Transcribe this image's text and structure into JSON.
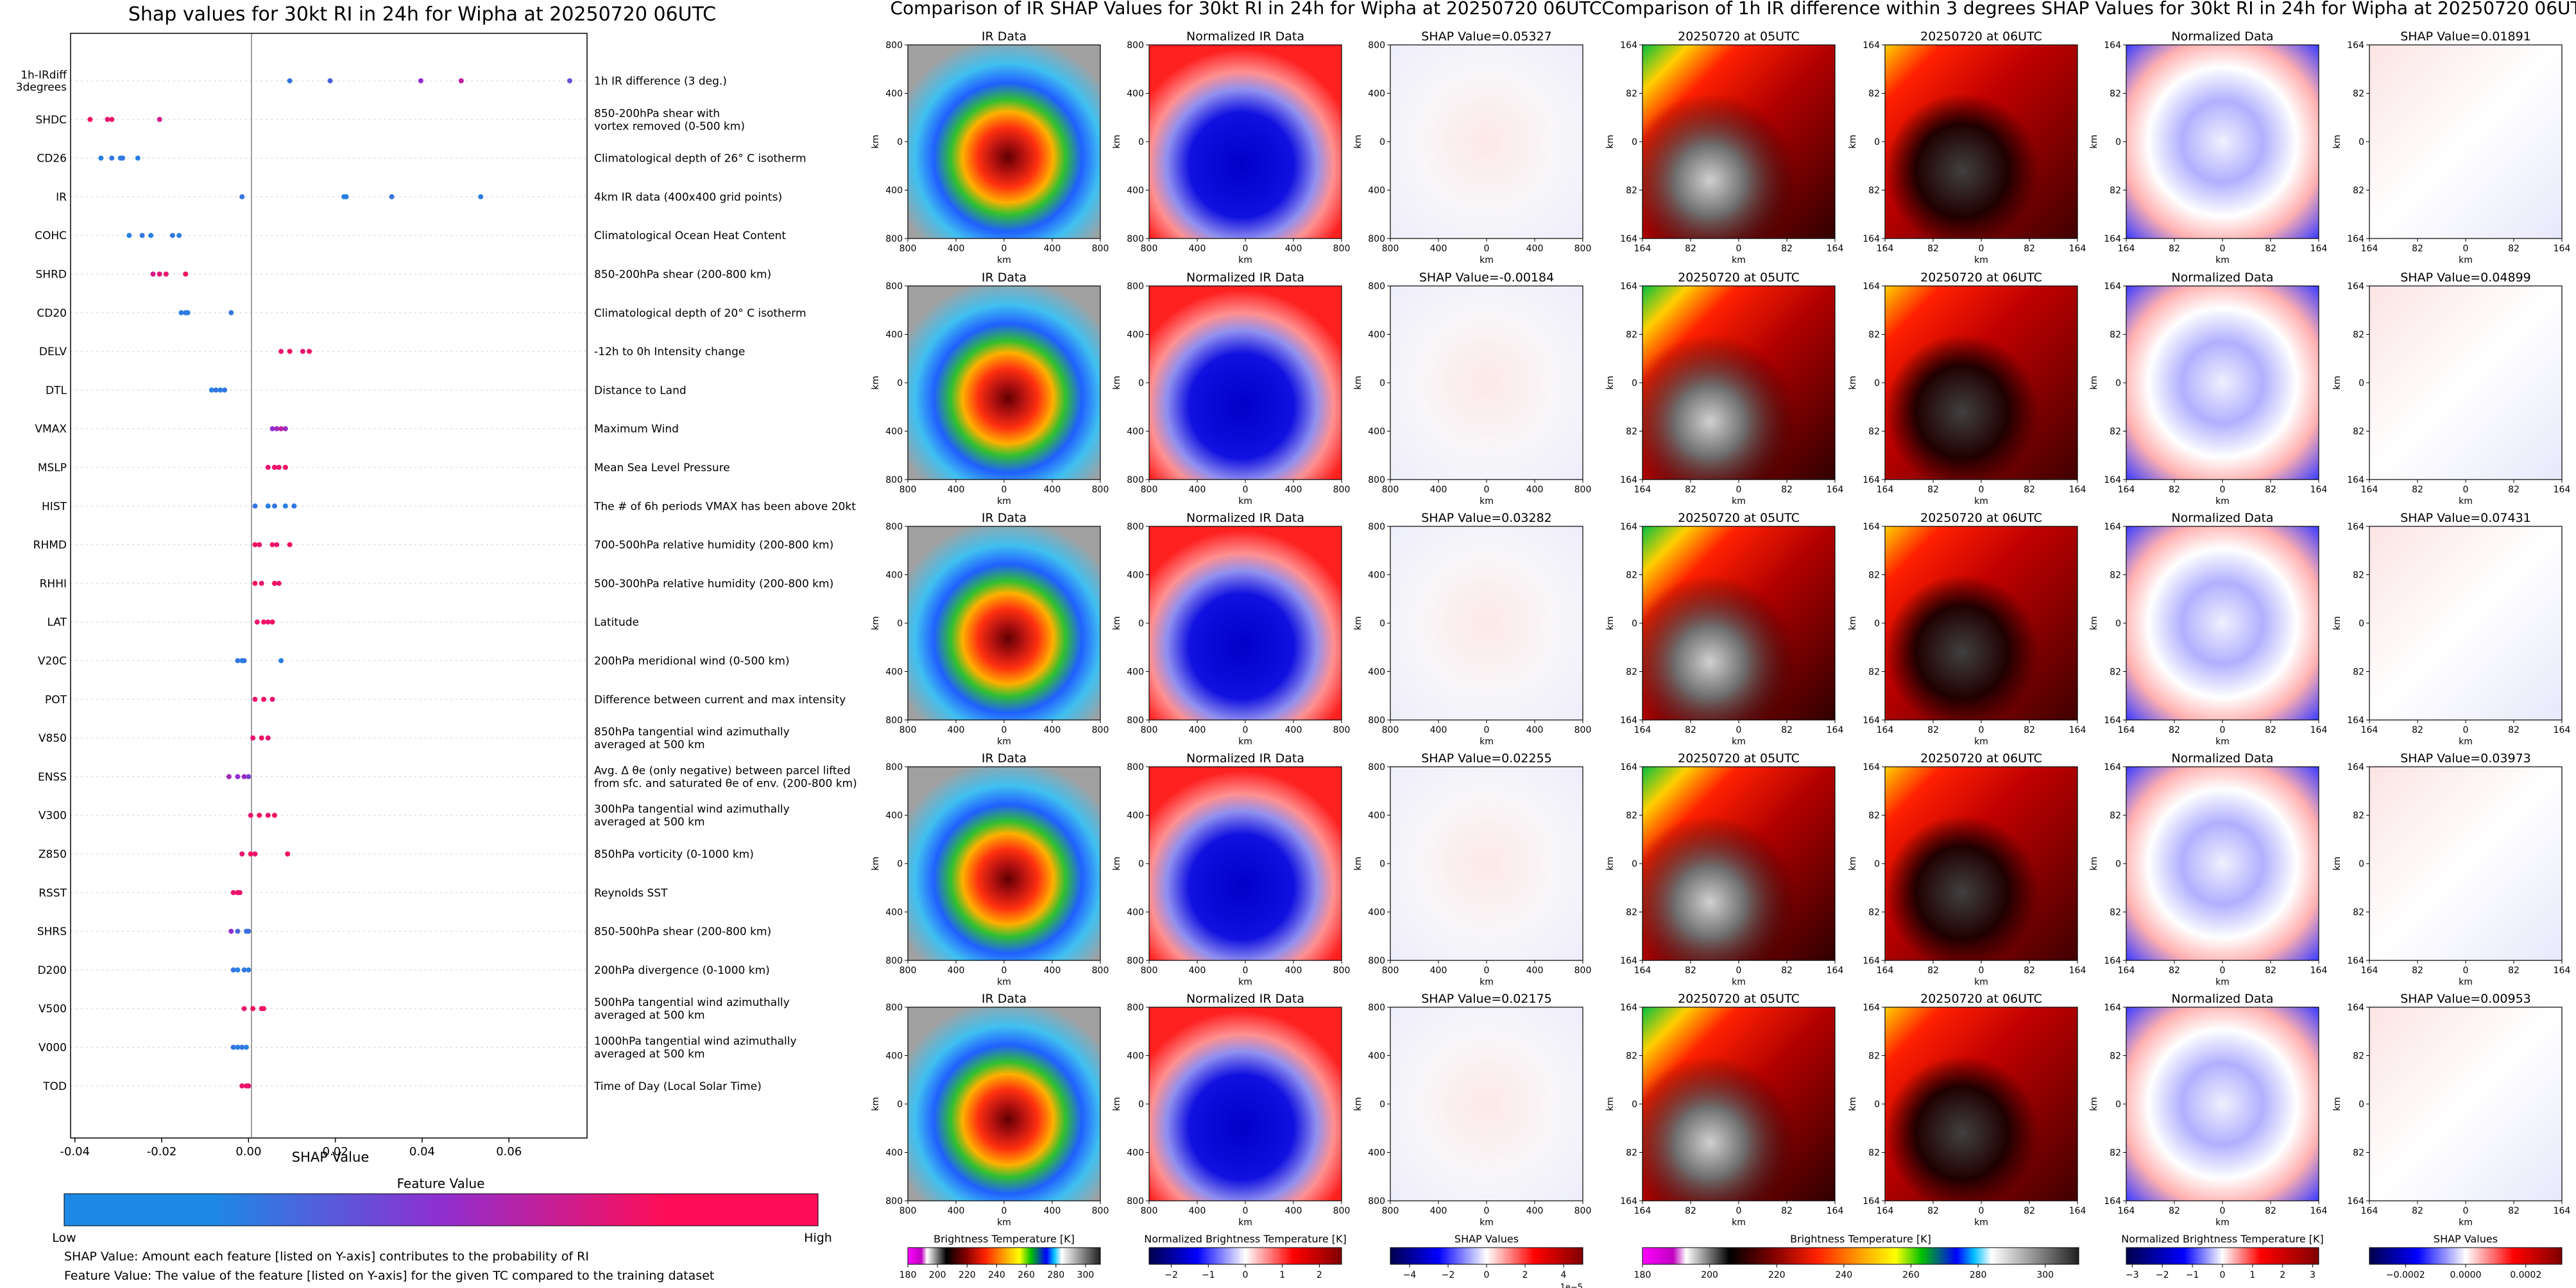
{
  "colors": {
    "low": "#1e88e5",
    "high": "#ff0d57",
    "mid": "#8f2fd0"
  },
  "chart_data": [
    {
      "type": "scatter",
      "title": "Shap values for 30kt RI in 24h for Wipha at 20250720 06UTC",
      "xlabel": "SHAP Value",
      "xlim": [
        -0.041,
        0.078
      ],
      "xticks": [
        "-0.04",
        "-0.02",
        "0.00",
        "0.02",
        "0.04",
        "0.06"
      ],
      "xtick_values": [
        -0.04,
        -0.02,
        0.0,
        0.02,
        0.04,
        0.06
      ],
      "features": [
        {
          "name": "1h-IRdiff\n3degrees",
          "desc": "1h IR difference (3 deg.)",
          "shap": [
            0.0095,
            0.0188,
            0.0397,
            0.049,
            0.074
          ],
          "fv": [
            0.1,
            0.2,
            0.5,
            0.7,
            0.3
          ]
        },
        {
          "name": "SHDC",
          "desc": "850-200hPa shear with\nvortex removed (0-500 km)",
          "shap": [
            -0.0365,
            -0.0325,
            -0.0315,
            -0.0205
          ],
          "fv": [
            0.95,
            0.9,
            0.92,
            0.8
          ]
        },
        {
          "name": "CD26",
          "desc": "Climatological depth of 26° C isotherm",
          "shap": [
            -0.034,
            -0.0315,
            -0.0295,
            -0.029,
            -0.0255
          ],
          "fv": [
            0.05,
            0.1,
            0.05,
            0.1,
            0.05
          ]
        },
        {
          "name": "IR",
          "desc": "4km IR data (400x400 grid points)",
          "shap": [
            -0.0015,
            0.022,
            0.0225,
            0.033,
            0.0535
          ],
          "fv": [
            0.1,
            0.05,
            0.05,
            0.1,
            0.05
          ]
        },
        {
          "name": "COHC",
          "desc": "Climatological Ocean Heat Content",
          "shap": [
            -0.0275,
            -0.0245,
            -0.0225,
            -0.0175,
            -0.016
          ],
          "fv": [
            0.05,
            0.1,
            0.05,
            0.1,
            0.05
          ]
        },
        {
          "name": "SHRD",
          "desc": "850-200hPa shear (200-800 km)",
          "shap": [
            -0.022,
            -0.0205,
            -0.019,
            -0.0145
          ],
          "fv": [
            0.8,
            0.85,
            0.9,
            0.95
          ]
        },
        {
          "name": "CD20",
          "desc": "Climatological depth of 20° C isotherm",
          "shap": [
            -0.0155,
            -0.0145,
            -0.014,
            -0.004
          ],
          "fv": [
            0.05,
            0.1,
            0.05,
            0.1
          ]
        },
        {
          "name": "DELV",
          "desc": "-12h to 0h Intensity change",
          "shap": [
            0.0075,
            0.0095,
            0.0125,
            0.014
          ],
          "fv": [
            0.9,
            0.95,
            0.9,
            0.95
          ]
        },
        {
          "name": "DTL",
          "desc": "Distance to Land",
          "shap": [
            -0.0085,
            -0.0075,
            -0.0065,
            -0.0055
          ],
          "fv": [
            0.05,
            0.1,
            0.05,
            0.1
          ]
        },
        {
          "name": "VMAX",
          "desc": "Maximum Wind",
          "shap": [
            0.0055,
            0.0065,
            0.0075,
            0.0085
          ],
          "fv": [
            0.5,
            0.6,
            0.7,
            0.55
          ]
        },
        {
          "name": "MSLP",
          "desc": "Mean Sea Level Pressure",
          "shap": [
            0.0045,
            0.006,
            0.007,
            0.0085
          ],
          "fv": [
            0.9,
            0.95,
            0.9,
            0.95
          ]
        },
        {
          "name": "HIST",
          "desc": "The # of 6h periods VMAX has been above 20kt",
          "shap": [
            0.0015,
            0.0045,
            0.006,
            0.0085,
            0.0105
          ],
          "fv": [
            0.1,
            0.05,
            0.1,
            0.05,
            0.1
          ]
        },
        {
          "name": "RHMD",
          "desc": "700-500hPa relative humidity (200-800 km)",
          "shap": [
            0.0015,
            0.0025,
            0.0055,
            0.0065,
            0.0095
          ],
          "fv": [
            0.95,
            0.9,
            0.95,
            0.9,
            0.95
          ]
        },
        {
          "name": "RHHI",
          "desc": "500-300hPa relative humidity (200-800 km)",
          "shap": [
            0.0015,
            0.003,
            0.006,
            0.007
          ],
          "fv": [
            0.95,
            0.9,
            0.95,
            0.9
          ]
        },
        {
          "name": "LAT",
          "desc": "Latitude",
          "shap": [
            0.002,
            0.0035,
            0.0045,
            0.0055
          ],
          "fv": [
            0.9,
            0.95,
            0.9,
            0.95
          ]
        },
        {
          "name": "V20C",
          "desc": "200hPa meridional wind (0-500 km)",
          "shap": [
            -0.0025,
            -0.0015,
            -0.001,
            0.0075
          ],
          "fv": [
            0.1,
            0.05,
            0.1,
            0.05
          ]
        },
        {
          "name": "POT",
          "desc": "Difference between current and max intensity",
          "shap": [
            0.0015,
            0.0035,
            0.0055
          ],
          "fv": [
            0.9,
            0.95,
            0.9
          ]
        },
        {
          "name": "V850",
          "desc": "850hPa tangential wind azimuthally\naveraged at 500 km",
          "shap": [
            0.001,
            0.003,
            0.0045
          ],
          "fv": [
            0.9,
            0.95,
            0.9
          ]
        },
        {
          "name": "ENSS",
          "desc": "Avg. Δ θe (only negative) between parcel lifted\nfrom sfc. and saturated θe of env. (200-800 km)",
          "shap": [
            -0.0045,
            -0.0025,
            -0.001,
            0.0
          ],
          "fv": [
            0.6,
            0.5,
            0.55,
            0.4
          ]
        },
        {
          "name": "V300",
          "desc": "300hPa tangential wind azimuthally\naveraged at 500 km",
          "shap": [
            0.0005,
            0.0025,
            0.0045,
            0.006
          ],
          "fv": [
            0.9,
            0.95,
            0.9,
            0.95
          ]
        },
        {
          "name": "Z850",
          "desc": "850hPa vorticity (0-1000 km)",
          "shap": [
            -0.0015,
            0.0005,
            0.0015,
            0.009
          ],
          "fv": [
            0.9,
            0.95,
            0.9,
            0.95
          ]
        },
        {
          "name": "RSST",
          "desc": "Reynolds SST",
          "shap": [
            -0.0035,
            -0.0025,
            -0.002
          ],
          "fv": [
            0.9,
            0.95,
            0.9
          ]
        },
        {
          "name": "SHRS",
          "desc": "850-500hPa shear (200-800 km)",
          "shap": [
            -0.004,
            -0.0025,
            -0.0005,
            0.0
          ],
          "fv": [
            0.5,
            0.2,
            0.1,
            0.15
          ]
        },
        {
          "name": "D200",
          "desc": "200hPa divergence (0-1000 km)",
          "shap": [
            -0.0035,
            -0.0025,
            -0.001,
            0.0
          ],
          "fv": [
            0.1,
            0.05,
            0.1,
            0.05
          ]
        },
        {
          "name": "V500",
          "desc": "500hPa tangential wind azimuthally\naveraged at 500 km",
          "shap": [
            -0.001,
            0.001,
            0.003,
            0.0035
          ],
          "fv": [
            0.9,
            0.95,
            0.9,
            0.95
          ]
        },
        {
          "name": "V000",
          "desc": "1000hPa tangential wind azimuthally\naveraged at 500 km",
          "shap": [
            -0.0035,
            -0.0025,
            -0.0015,
            -0.0005
          ],
          "fv": [
            0.1,
            0.05,
            0.1,
            0.05
          ]
        },
        {
          "name": "TOD",
          "desc": "Time of Day (Local Solar Time)",
          "shap": [
            -0.0015,
            -0.0005,
            0.0
          ],
          "fv": [
            0.9,
            0.95,
            0.9
          ]
        }
      ],
      "colorbar": {
        "title": "Feature Value",
        "low": "Low",
        "high": "High"
      },
      "notes": [
        "SHAP Value: Amount each feature [listed on Y-axis] contributes to the probability of RI",
        "Feature Value: The value of the feature [listed on Y-axis] for the given TC compared to the training dataset"
      ]
    },
    {
      "type": "heatmap",
      "title": "Comparison of IR SHAP Values for 30kt RI in 24h for Wipha at 20250720 06UTC",
      "col_titles": [
        "IR Data",
        "Normalized IR Data"
      ],
      "shap_titles": [
        "SHAP Value=0.05327",
        "SHAP Value=-0.00184",
        "SHAP Value=0.03282",
        "SHAP Value=0.02255",
        "SHAP Value=0.02175"
      ],
      "xticks": [
        "800",
        "400",
        "0",
        "400",
        "800"
      ],
      "yticks": [
        "800",
        "400",
        "0",
        "400",
        "800"
      ],
      "xlabel": "km",
      "ylabel": "km",
      "colorbars": [
        {
          "label": "Brightness Temperature [K]",
          "ticks": [
            "180",
            "200",
            "220",
            "240",
            "260",
            "280",
            "300"
          ],
          "range": [
            180,
            310
          ]
        },
        {
          "label": "Normalized Brightness Temperature [K]",
          "ticks": [
            "−2",
            "−1",
            "0",
            "1",
            "2"
          ],
          "range": [
            -2.6,
            2.6
          ]
        },
        {
          "label": "SHAP Values",
          "ticks": [
            "−4",
            "−2",
            "0",
            "2",
            "4"
          ],
          "range": [
            -5,
            5
          ],
          "offset": "1e−5"
        }
      ]
    },
    {
      "type": "heatmap",
      "title": "Comparison of 1h IR difference within 3 degrees SHAP Values for 30kt RI in 24h for Wipha at 20250720 06UTC",
      "col_titles": [
        "20250720 at 05UTC",
        "20250720 at 06UTC",
        "Normalized Data"
      ],
      "shap_titles": [
        "SHAP Value=0.01891",
        "SHAP Value=0.04899",
        "SHAP Value=0.07431",
        "SHAP Value=0.03973",
        "SHAP Value=0.00953"
      ],
      "xticks": [
        "164",
        "82",
        "0",
        "82",
        "164"
      ],
      "yticks": [
        "164",
        "82",
        "0",
        "82",
        "164"
      ],
      "xlabel": "km",
      "ylabel": "km",
      "colorbars": [
        {
          "label": "Brightness Temperature [K]",
          "ticks": [
            "180",
            "200",
            "220",
            "240",
            "260",
            "280",
            "300"
          ],
          "range": [
            180,
            310
          ]
        },
        {
          "label": "Normalized Brightness Temperature [K]",
          "ticks": [
            "−3",
            "−2",
            "−1",
            "0",
            "1",
            "2",
            "3"
          ],
          "range": [
            -3.2,
            3.2
          ]
        },
        {
          "label": "SHAP Values",
          "ticks": [
            "−0.0002",
            "0.0000",
            "0.0002"
          ],
          "range": [
            -0.00032,
            0.00032
          ]
        }
      ]
    }
  ]
}
